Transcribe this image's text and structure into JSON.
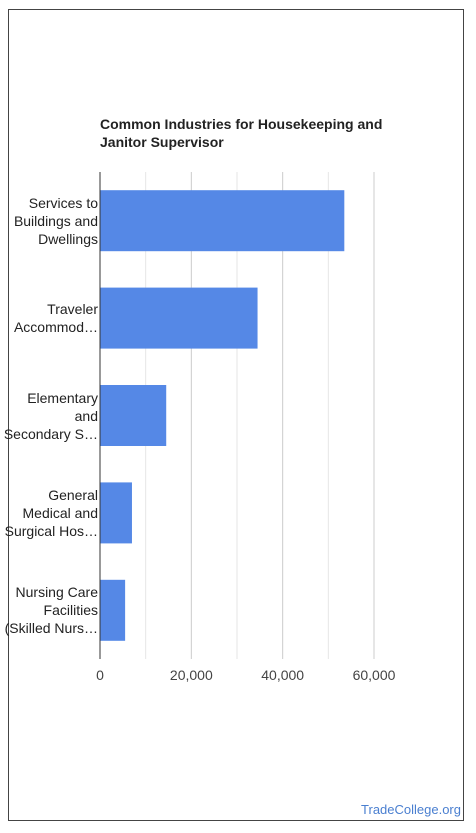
{
  "chart_data": {
    "type": "bar",
    "orientation": "horizontal",
    "title_lines": [
      "Common Industries for Housekeeping and",
      "Janitor Supervisor"
    ],
    "categories": [
      [
        "Services to",
        "Buildings and",
        "Dwellings"
      ],
      [
        "Traveler",
        "Accommod…"
      ],
      [
        "Elementary",
        "and",
        "Secondary S…"
      ],
      [
        "General",
        "Medical and",
        "Surgical Hos…"
      ],
      [
        "Nursing Care",
        "Facilities",
        "(Skilled Nurs…"
      ]
    ],
    "values": [
      53500,
      34500,
      14500,
      7000,
      5500
    ],
    "xlim": [
      0,
      60000
    ],
    "ticks": [
      "0",
      "20,000",
      "40,000",
      "60,000"
    ],
    "tick_values": [
      0,
      20000,
      40000,
      60000
    ],
    "grid": true,
    "bar_color": "#5588e6"
  },
  "footer": {
    "source": "TradeCollege.org"
  }
}
